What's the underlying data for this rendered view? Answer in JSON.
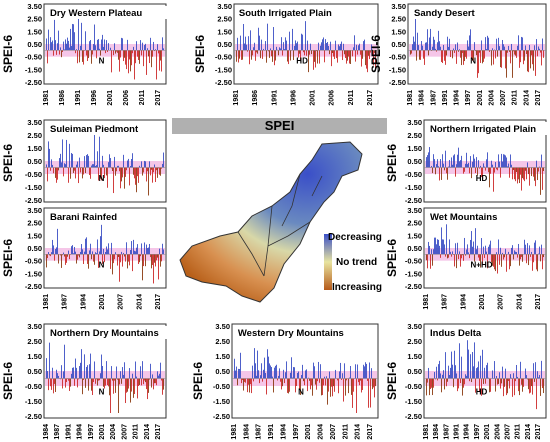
{
  "figure_title": "SPEI",
  "map_legend": {
    "top": "Decreasing",
    "mid": "No trend",
    "bottom": "Increasing",
    "colors": [
      "#4a5fc0",
      "#e8e4a0",
      "#b55a1a"
    ]
  },
  "colors": {
    "positive": "#3b4fc4",
    "negative": "#cc2a2a",
    "negative_dark": "#8a3a10",
    "band": "#f5c6e8",
    "frame": "#333333"
  },
  "y_axis_label": "SPEI-6",
  "chart_data": [
    {
      "type": "bar",
      "title": "Dry Western Plateau",
      "trend": "N",
      "ylabel": "SPEI-6",
      "ylim": [
        -2.5,
        3.5
      ],
      "yticks": [
        "3.50",
        "2.50",
        "1.50",
        "0.50",
        "-0.50",
        "-1.50",
        "-2.50"
      ],
      "xticks": [
        "1981",
        "1986",
        "1991",
        "1996",
        "2001",
        "2006",
        "2011",
        "2017"
      ],
      "dominant": "mixed"
    },
    {
      "type": "bar",
      "title": "South Irrigated Plain",
      "trend": "HD",
      "ylabel": "SPEI-6",
      "ylim": [
        -2.5,
        3.5
      ],
      "yticks": [
        "3.50",
        "2.50",
        "1.50",
        "0.50",
        "-0.50",
        "-1.50",
        "-2.50"
      ],
      "xticks": [
        "1981",
        "1986",
        "1991",
        "1996",
        "2001",
        "2006",
        "2011",
        "2017"
      ],
      "dominant": "mixed"
    },
    {
      "type": "bar",
      "title": "Sandy Desert",
      "trend": "N",
      "ylabel": "SPEI-6",
      "ylim": [
        -2.5,
        3.5
      ],
      "yticks": [
        "3.50",
        "2.50",
        "1.50",
        "0.50",
        "-0.50",
        "-1.50",
        "-2.50"
      ],
      "xticks": [
        "1981",
        "1984",
        "1987",
        "1991",
        "1994",
        "1997",
        "2001",
        "2004",
        "2007",
        "2011",
        "2014",
        "2017"
      ],
      "dominant": "mixed"
    },
    {
      "type": "bar",
      "title": "Suleiman Piedmont",
      "trend": "N",
      "ylabel": "SPEI-6",
      "ylim": [
        -2.5,
        3.5
      ],
      "yticks": [
        "3.50",
        "2.50",
        "1.50",
        "0.50",
        "-0.50",
        "-1.50",
        "-2.50"
      ],
      "xticks": [],
      "dominant": "mixed"
    },
    {
      "type": "bar",
      "title": "Northern Irrigated Plain",
      "trend": "HD",
      "ylabel": "SPEI-6",
      "ylim": [
        -2.5,
        3.5
      ],
      "yticks": [
        "3.50",
        "2.50",
        "1.50",
        "0.50",
        "-0.50",
        "-1.50",
        "-2.50"
      ],
      "xticks": [],
      "dominant": "mixed"
    },
    {
      "type": "bar",
      "title": "Barani Rainfed",
      "trend": "N",
      "ylabel": "SPEI-6",
      "ylim": [
        -2.5,
        3.5
      ],
      "yticks": [
        "3.50",
        "2.50",
        "1.50",
        "0.50",
        "-0.50",
        "-1.50",
        "-2.50"
      ],
      "xticks": [
        "1981",
        "1987",
        "1994",
        "2001",
        "2007",
        "2014",
        "2017"
      ],
      "dominant": "mixed"
    },
    {
      "type": "bar",
      "title": "Wet Mountains",
      "trend": "N+HD",
      "ylabel": "SPEI-6",
      "ylim": [
        -2.5,
        3.5
      ],
      "yticks": [
        "3.50",
        "2.50",
        "1.50",
        "0.50",
        "-0.50",
        "-1.50",
        "-2.50"
      ],
      "xticks": [
        "1981",
        "1987",
        "1994",
        "2001",
        "2007",
        "2014",
        "2017"
      ],
      "dominant": "mixed"
    },
    {
      "type": "bar",
      "title": "Northern Dry Mountains",
      "trend": "N",
      "ylabel": "SPEI-6",
      "ylim": [
        -2.5,
        3.5
      ],
      "yticks": [
        "3.50",
        "2.50",
        "1.50",
        "0.50",
        "-0.50",
        "-1.50",
        "-2.50"
      ],
      "xticks": [
        "1984",
        "1987",
        "1991",
        "1994",
        "1997",
        "2001",
        "2004",
        "2007",
        "2011",
        "2014",
        "2017"
      ],
      "dominant": "mixed"
    },
    {
      "type": "bar",
      "title": "Western Dry Mountains",
      "trend": "N",
      "ylabel": "SPEI-6",
      "ylim": [
        -2.5,
        3.5
      ],
      "yticks": [
        "3.50",
        "2.50",
        "1.50",
        "0.50",
        "-0.50",
        "-1.50",
        "-2.50"
      ],
      "xticks": [
        "1981",
        "1984",
        "1987",
        "1991",
        "1994",
        "1997",
        "2001",
        "2004",
        "2007",
        "2011",
        "2014",
        "2017"
      ],
      "dominant": "mixed"
    },
    {
      "type": "bar",
      "title": "Indus Delta",
      "trend": "HD",
      "ylabel": "SPEI-6",
      "ylim": [
        -2.5,
        3.5
      ],
      "yticks": [
        "3.50",
        "2.50",
        "1.50",
        "0.50",
        "-0.50",
        "-1.50",
        "-2.50"
      ],
      "xticks": [
        "1981",
        "1984",
        "1987",
        "1991",
        "1994",
        "1997",
        "2001",
        "2004",
        "2007",
        "2011",
        "2014",
        "2017"
      ],
      "dominant": "mixed"
    }
  ]
}
